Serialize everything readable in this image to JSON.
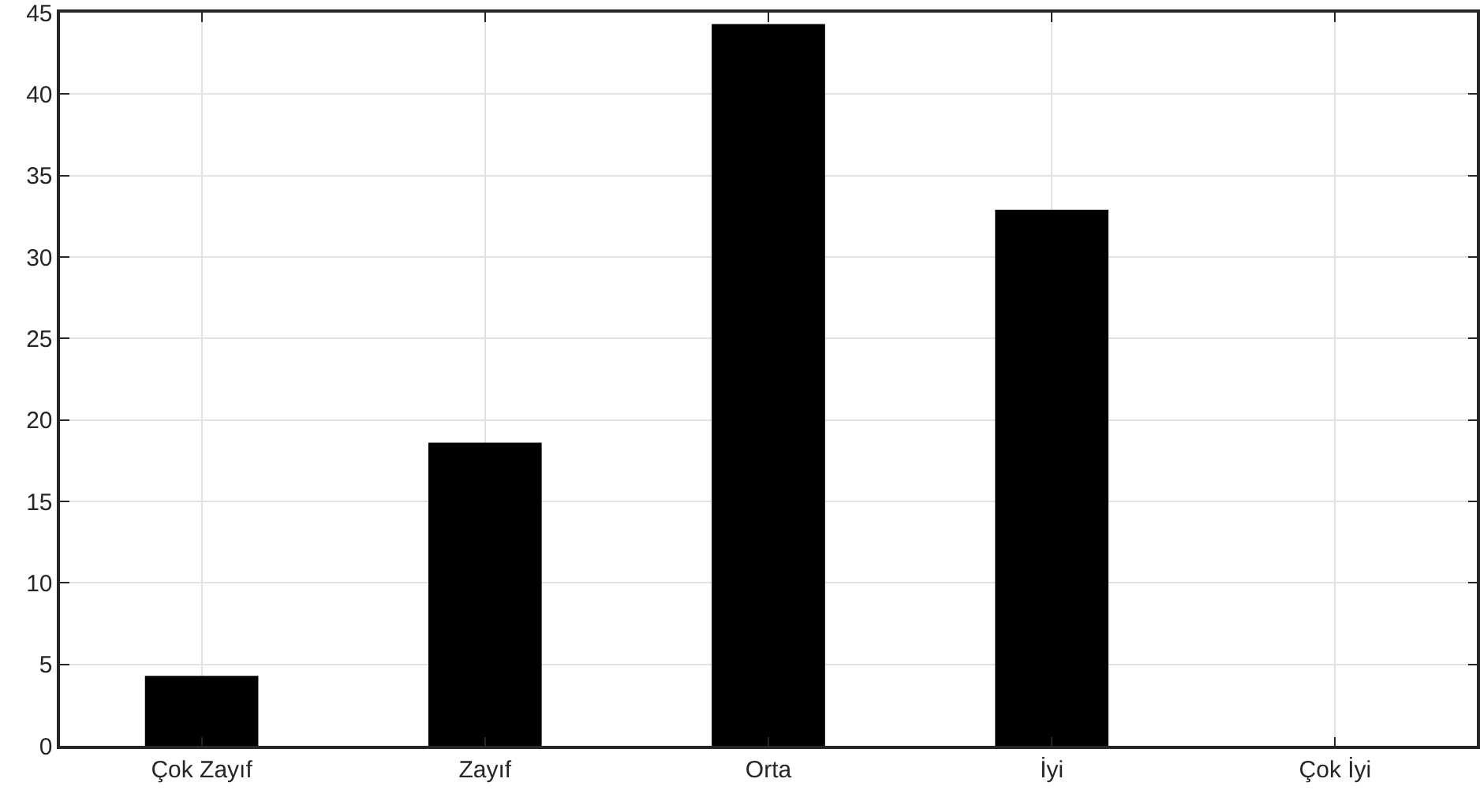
{
  "chart_data": {
    "type": "bar",
    "categories": [
      "Çok Zayıf",
      "Zayıf",
      "Orta",
      "İyi",
      "Çok İyi"
    ],
    "values": [
      4.3,
      18.6,
      44.3,
      32.9,
      0
    ],
    "color": "#000000",
    "ylim": [
      0,
      45
    ],
    "yticks": [
      0,
      5,
      10,
      15,
      20,
      25,
      30,
      35,
      40,
      45
    ],
    "grid": true
  }
}
